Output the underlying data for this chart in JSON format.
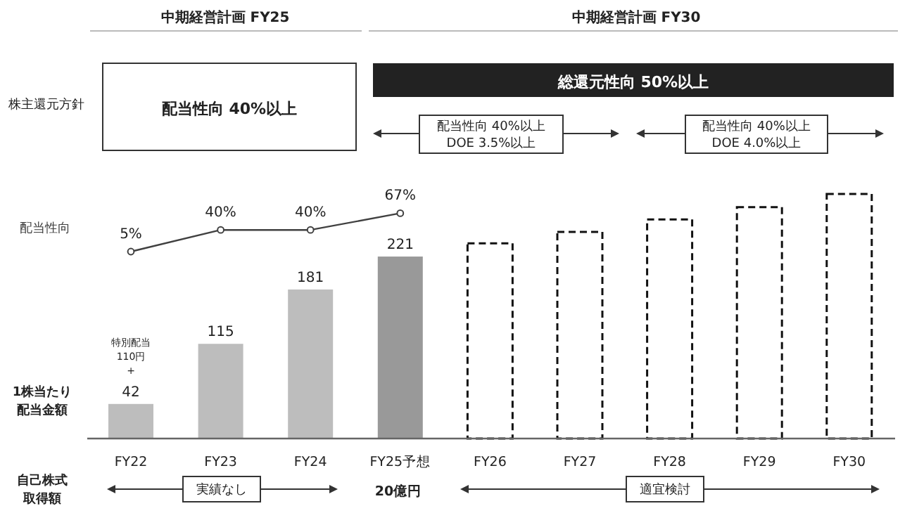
{
  "chart_data": {
    "type": "bar",
    "categories": [
      "FY22",
      "FY23",
      "FY24",
      "FY25予想",
      "FY26",
      "FY27",
      "FY28",
      "FY29",
      "FY30"
    ],
    "tick_labels": "x",
    "series": [
      {
        "colors": [
          "#bdbdbd",
          "#bdbdbd",
          "#bdbdbd",
          "#999999",
          null,
          null,
          null,
          null,
          null
        ],
        "values": [
          42,
          115,
          181,
          221,
          null,
          null,
          null,
          null,
          null
        ],
        "value_labels": [
          "42",
          "115",
          "181",
          "221",
          null,
          null,
          null,
          null,
          null
        ]
      },
      {
        "color": "#ffffff",
        "line_style": "dashed",
        "values": [
          null,
          null,
          null,
          null,
          237,
          251,
          266,
          281,
          297
        ]
      },
      {
        "name": "配当性向",
        "type": "line",
        "axis": "y2",
        "color": "#404040",
        "marker": "circle",
        "values": [
          5,
          40,
          40,
          67,
          null,
          null,
          null,
          null,
          null
        ],
        "value_labels": [
          "5%",
          "40%",
          "40%",
          "67%",
          null,
          null,
          null,
          null,
          null
        ]
      }
    ],
    "annotations": [
      "中期経営計画 FY25",
      "中期経営計画 FY30",
      "株主還元方針",
      "配当性向 40%以上",
      "総還元性向 50%以上",
      "配当性向 40%以上\nDOE 3.5%以上",
      "配当性向 40%以上\nDOE 4.0%以上",
      "自己株式取得額",
      "実績なし",
      "20億円",
      "適宜検討",
      "1株当たり配当金額",
      {
        "text": "特別配当\n110円\n+",
        "x": "FY22",
        "y": 42
      }
    ]
  }
}
